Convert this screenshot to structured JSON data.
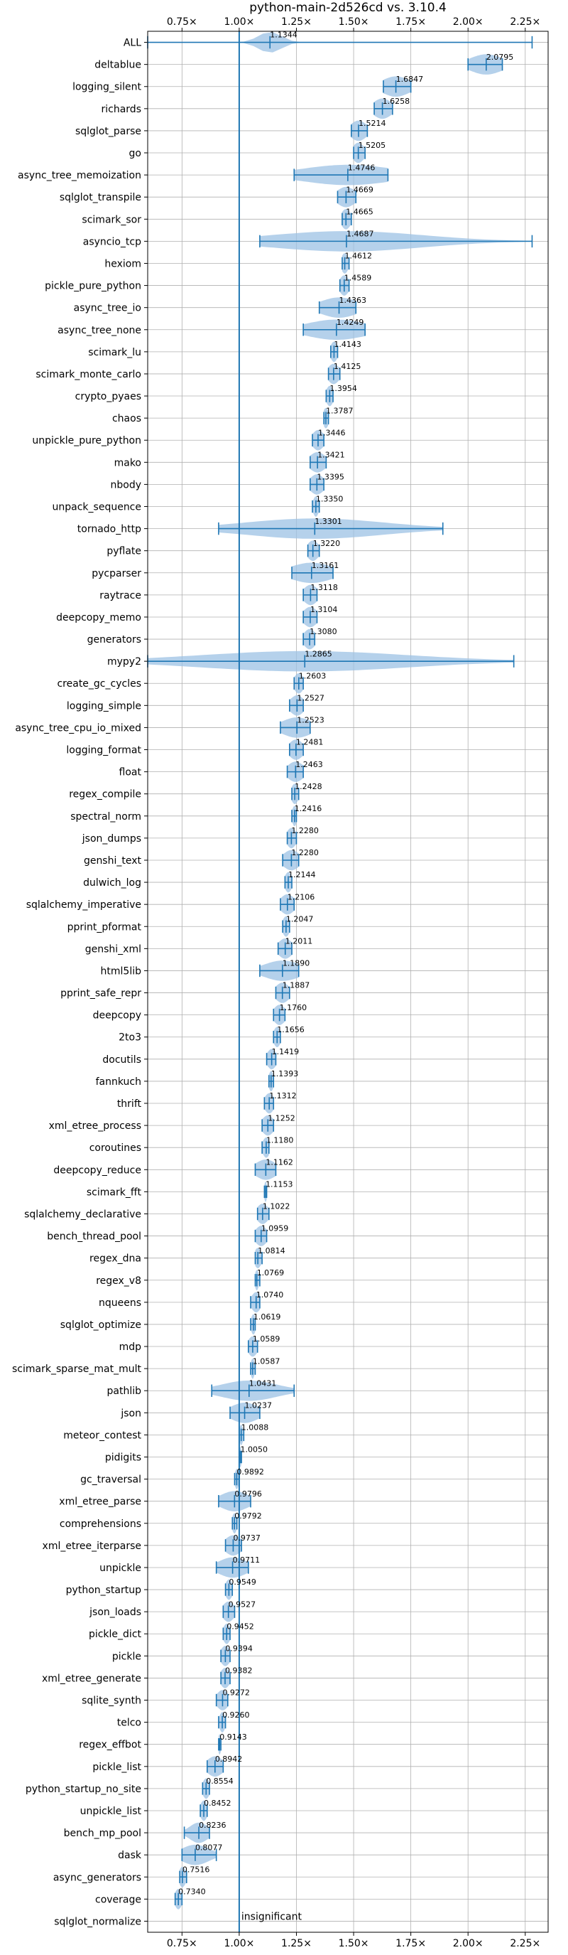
{
  "chart_data": {
    "type": "violin",
    "title": "python-main-2d526cd vs. 3.10.4",
    "xlabel": "",
    "ylabel": "",
    "xlim": [
      0.6,
      2.35
    ],
    "xticks": [
      0.75,
      1.0,
      1.25,
      1.5,
      1.75,
      2.0,
      2.25
    ],
    "xtick_labels": [
      "0.75×",
      "1.00×",
      "1.25×",
      "1.50×",
      "1.75×",
      "2.00×",
      "2.25×"
    ],
    "ticks_top_and_bottom": true,
    "grid": true,
    "reference_line": 1.0,
    "accent_color": "#1f77b4",
    "violin_color": "#9cc2e4",
    "annotation": "insignificant",
    "benchmarks": [
      {
        "name": "ALL",
        "value": 1.1344,
        "label": "1.1344",
        "min": 0.6,
        "max": 2.28,
        "spread": 0.05
      },
      {
        "name": "deltablue",
        "value": 2.0795,
        "label": "2.0795",
        "min": 2.0,
        "max": 2.15,
        "spread": 0.07
      },
      {
        "name": "logging_silent",
        "value": 1.6847,
        "label": "1.6847",
        "min": 1.63,
        "max": 1.75,
        "spread": 0.06
      },
      {
        "name": "richards",
        "value": 1.6258,
        "label": "1.6258",
        "min": 1.59,
        "max": 1.67,
        "spread": 0.04
      },
      {
        "name": "sqlglot_parse",
        "value": 1.5214,
        "label": "1.5214",
        "min": 1.49,
        "max": 1.56,
        "spread": 0.035
      },
      {
        "name": "go",
        "value": 1.5205,
        "label": "1.5205",
        "min": 1.5,
        "max": 1.55,
        "spread": 0.025
      },
      {
        "name": "async_tree_memoization",
        "value": 1.4746,
        "label": "1.4746",
        "min": 1.24,
        "max": 1.65,
        "spread": 0.2
      },
      {
        "name": "sqlglot_transpile",
        "value": 1.4669,
        "label": "1.4669",
        "min": 1.43,
        "max": 1.51,
        "spread": 0.04
      },
      {
        "name": "scimark_sor",
        "value": 1.4665,
        "label": "1.4665",
        "min": 1.45,
        "max": 1.49,
        "spread": 0.02
      },
      {
        "name": "asyncio_tcp",
        "value": 1.4687,
        "label": "1.4687",
        "min": 1.09,
        "max": 2.28,
        "spread": 0.33
      },
      {
        "name": "hexiom",
        "value": 1.4612,
        "label": "1.4612",
        "min": 1.45,
        "max": 1.48,
        "spread": 0.015
      },
      {
        "name": "pickle_pure_python",
        "value": 1.4589,
        "label": "1.4589",
        "min": 1.44,
        "max": 1.48,
        "spread": 0.02
      },
      {
        "name": "async_tree_io",
        "value": 1.4363,
        "label": "1.4363",
        "min": 1.35,
        "max": 1.51,
        "spread": 0.08
      },
      {
        "name": "async_tree_none",
        "value": 1.4249,
        "label": "1.4249",
        "min": 1.28,
        "max": 1.55,
        "spread": 0.13
      },
      {
        "name": "scimark_lu",
        "value": 1.4143,
        "label": "1.4143",
        "min": 1.4,
        "max": 1.43,
        "spread": 0.015
      },
      {
        "name": "scimark_monte_carlo",
        "value": 1.4125,
        "label": "1.4125",
        "min": 1.39,
        "max": 1.44,
        "spread": 0.025
      },
      {
        "name": "crypto_pyaes",
        "value": 1.3954,
        "label": "1.3954",
        "min": 1.38,
        "max": 1.41,
        "spread": 0.015
      },
      {
        "name": "chaos",
        "value": 1.3787,
        "label": "1.3787",
        "min": 1.37,
        "max": 1.39,
        "spread": 0.012
      },
      {
        "name": "unpickle_pure_python",
        "value": 1.3446,
        "label": "1.3446",
        "min": 1.32,
        "max": 1.37,
        "spread": 0.025
      },
      {
        "name": "mako",
        "value": 1.3421,
        "label": "1.3421",
        "min": 1.31,
        "max": 1.38,
        "spread": 0.035
      },
      {
        "name": "nbody",
        "value": 1.3395,
        "label": "1.3395",
        "min": 1.31,
        "max": 1.37,
        "spread": 0.03
      },
      {
        "name": "unpack_sequence",
        "value": 1.335,
        "label": "1.3350",
        "min": 1.32,
        "max": 1.35,
        "spread": 0.012
      },
      {
        "name": "tornado_http",
        "value": 1.3301,
        "label": "1.3301",
        "min": 0.91,
        "max": 1.89,
        "spread": 0.3
      },
      {
        "name": "pyflate",
        "value": 1.322,
        "label": "1.3220",
        "min": 1.3,
        "max": 1.35,
        "spread": 0.025
      },
      {
        "name": "pycparser",
        "value": 1.3161,
        "label": "1.3161",
        "min": 1.23,
        "max": 1.41,
        "spread": 0.09
      },
      {
        "name": "raytrace",
        "value": 1.3118,
        "label": "1.3118",
        "min": 1.28,
        "max": 1.34,
        "spread": 0.03
      },
      {
        "name": "deepcopy_memo",
        "value": 1.3104,
        "label": "1.3104",
        "min": 1.28,
        "max": 1.34,
        "spread": 0.03
      },
      {
        "name": "generators",
        "value": 1.308,
        "label": "1.3080",
        "min": 1.28,
        "max": 1.33,
        "spread": 0.025
      },
      {
        "name": "mypy2",
        "value": 1.2865,
        "label": "1.2865",
        "min": 0.6,
        "max": 2.2,
        "spread": 0.45
      },
      {
        "name": "create_gc_cycles",
        "value": 1.2603,
        "label": "1.2603",
        "min": 1.24,
        "max": 1.28,
        "spread": 0.02
      },
      {
        "name": "logging_simple",
        "value": 1.2527,
        "label": "1.2527",
        "min": 1.22,
        "max": 1.28,
        "spread": 0.03
      },
      {
        "name": "async_tree_cpu_io_mixed",
        "value": 1.2523,
        "label": "1.2523",
        "min": 1.18,
        "max": 1.31,
        "spread": 0.065
      },
      {
        "name": "logging_format",
        "value": 1.2481,
        "label": "1.2481",
        "min": 1.22,
        "max": 1.28,
        "spread": 0.03
      },
      {
        "name": "float",
        "value": 1.2463,
        "label": "1.2463",
        "min": 1.21,
        "max": 1.28,
        "spread": 0.035
      },
      {
        "name": "regex_compile",
        "value": 1.2428,
        "label": "1.2428",
        "min": 1.23,
        "max": 1.26,
        "spread": 0.015
      },
      {
        "name": "spectral_norm",
        "value": 1.2416,
        "label": "1.2416",
        "min": 1.23,
        "max": 1.25,
        "spread": 0.01
      },
      {
        "name": "json_dumps",
        "value": 1.228,
        "label": "1.2280",
        "min": 1.21,
        "max": 1.25,
        "spread": 0.02
      },
      {
        "name": "genshi_text",
        "value": 1.228,
        "label": "1.2280",
        "min": 1.19,
        "max": 1.26,
        "spread": 0.035
      },
      {
        "name": "dulwich_log",
        "value": 1.2144,
        "label": "1.2144",
        "min": 1.2,
        "max": 1.23,
        "spread": 0.015
      },
      {
        "name": "sqlalchemy_imperative",
        "value": 1.2106,
        "label": "1.2106",
        "min": 1.18,
        "max": 1.24,
        "spread": 0.03
      },
      {
        "name": "pprint_pformat",
        "value": 1.2047,
        "label": "1.2047",
        "min": 1.19,
        "max": 1.22,
        "spread": 0.015
      },
      {
        "name": "genshi_xml",
        "value": 1.2011,
        "label": "1.2011",
        "min": 1.17,
        "max": 1.23,
        "spread": 0.03
      },
      {
        "name": "html5lib",
        "value": 1.189,
        "label": "1.1890",
        "min": 1.09,
        "max": 1.26,
        "spread": 0.08
      },
      {
        "name": "pprint_safe_repr",
        "value": 1.1887,
        "label": "1.1887",
        "min": 1.16,
        "max": 1.22,
        "spread": 0.03
      },
      {
        "name": "deepcopy",
        "value": 1.176,
        "label": "1.1760",
        "min": 1.15,
        "max": 1.2,
        "spread": 0.025
      },
      {
        "name": "2to3",
        "value": 1.1656,
        "label": "1.1656",
        "min": 1.15,
        "max": 1.18,
        "spread": 0.015
      },
      {
        "name": "docutils",
        "value": 1.1419,
        "label": "1.1419",
        "min": 1.12,
        "max": 1.16,
        "spread": 0.02
      },
      {
        "name": "fannkuch",
        "value": 1.1393,
        "label": "1.1393",
        "min": 1.13,
        "max": 1.15,
        "spread": 0.01
      },
      {
        "name": "thrift",
        "value": 1.1312,
        "label": "1.1312",
        "min": 1.11,
        "max": 1.15,
        "spread": 0.02
      },
      {
        "name": "xml_etree_process",
        "value": 1.1252,
        "label": "1.1252",
        "min": 1.1,
        "max": 1.15,
        "spread": 0.025
      },
      {
        "name": "coroutines",
        "value": 1.118,
        "label": "1.1180",
        "min": 1.1,
        "max": 1.13,
        "spread": 0.015
      },
      {
        "name": "deepcopy_reduce",
        "value": 1.1162,
        "label": "1.1162",
        "min": 1.07,
        "max": 1.16,
        "spread": 0.045
      },
      {
        "name": "scimark_fft",
        "value": 1.1153,
        "label": "1.1153",
        "min": 1.11,
        "max": 1.12,
        "spread": 0.006
      },
      {
        "name": "sqlalchemy_declarative",
        "value": 1.1022,
        "label": "1.1022",
        "min": 1.08,
        "max": 1.13,
        "spread": 0.025
      },
      {
        "name": "bench_thread_pool",
        "value": 1.0959,
        "label": "1.0959",
        "min": 1.07,
        "max": 1.12,
        "spread": 0.025
      },
      {
        "name": "regex_dna",
        "value": 1.0814,
        "label": "1.0814",
        "min": 1.07,
        "max": 1.1,
        "spread": 0.015
      },
      {
        "name": "regex_v8",
        "value": 1.0769,
        "label": "1.0769",
        "min": 1.07,
        "max": 1.09,
        "spread": 0.008
      },
      {
        "name": "nqueens",
        "value": 1.074,
        "label": "1.0740",
        "min": 1.05,
        "max": 1.09,
        "spread": 0.02
      },
      {
        "name": "sqlglot_optimize",
        "value": 1.0619,
        "label": "1.0619",
        "min": 1.05,
        "max": 1.07,
        "spread": 0.01
      },
      {
        "name": "mdp",
        "value": 1.0589,
        "label": "1.0589",
        "min": 1.04,
        "max": 1.08,
        "spread": 0.02
      },
      {
        "name": "scimark_sparse_mat_mult",
        "value": 1.0587,
        "label": "1.0587",
        "min": 1.05,
        "max": 1.07,
        "spread": 0.008
      },
      {
        "name": "pathlib",
        "value": 1.0431,
        "label": "1.0431",
        "min": 0.88,
        "max": 1.24,
        "spread": 0.12
      },
      {
        "name": "json",
        "value": 1.0237,
        "label": "1.0237",
        "min": 0.96,
        "max": 1.09,
        "spread": 0.06
      },
      {
        "name": "meteor_contest",
        "value": 1.0088,
        "label": "1.0088",
        "min": 1.0,
        "max": 1.02,
        "spread": 0.008
      },
      {
        "name": "pidigits",
        "value": 1.005,
        "label": "1.0050",
        "min": 1.0,
        "max": 1.01,
        "spread": 0.005
      },
      {
        "name": "gc_traversal",
        "value": 0.9892,
        "label": "0.9892",
        "min": 0.98,
        "max": 1.0,
        "spread": 0.008
      },
      {
        "name": "xml_etree_parse",
        "value": 0.9796,
        "label": "0.9796",
        "min": 0.91,
        "max": 1.05,
        "spread": 0.06
      },
      {
        "name": "comprehensions",
        "value": 0.9792,
        "label": "0.9792",
        "min": 0.97,
        "max": 0.99,
        "spread": 0.01
      },
      {
        "name": "xml_etree_iterparse",
        "value": 0.9737,
        "label": "0.9737",
        "min": 0.94,
        "max": 1.01,
        "spread": 0.035
      },
      {
        "name": "unpickle",
        "value": 0.9711,
        "label": "0.9711",
        "min": 0.9,
        "max": 1.04,
        "spread": 0.06
      },
      {
        "name": "python_startup",
        "value": 0.9549,
        "label": "0.9549",
        "min": 0.94,
        "max": 0.97,
        "spread": 0.015
      },
      {
        "name": "json_loads",
        "value": 0.9527,
        "label": "0.9527",
        "min": 0.93,
        "max": 0.98,
        "spread": 0.025
      },
      {
        "name": "pickle_dict",
        "value": 0.9452,
        "label": "0.9452",
        "min": 0.93,
        "max": 0.96,
        "spread": 0.015
      },
      {
        "name": "pickle",
        "value": 0.9394,
        "label": "0.9394",
        "min": 0.92,
        "max": 0.96,
        "spread": 0.02
      },
      {
        "name": "xml_etree_generate",
        "value": 0.9382,
        "label": "0.9382",
        "min": 0.92,
        "max": 0.96,
        "spread": 0.02
      },
      {
        "name": "sqlite_synth",
        "value": 0.9272,
        "label": "0.9272",
        "min": 0.9,
        "max": 0.95,
        "spread": 0.025
      },
      {
        "name": "telco",
        "value": 0.926,
        "label": "0.9260",
        "min": 0.91,
        "max": 0.94,
        "spread": 0.012
      },
      {
        "name": "regex_effbot",
        "value": 0.9143,
        "label": "0.9143",
        "min": 0.91,
        "max": 0.92,
        "spread": 0.006
      },
      {
        "name": "pickle_list",
        "value": 0.8942,
        "label": "0.8942",
        "min": 0.86,
        "max": 0.93,
        "spread": 0.035
      },
      {
        "name": "python_startup_no_site",
        "value": 0.8554,
        "label": "0.8554",
        "min": 0.84,
        "max": 0.87,
        "spread": 0.015
      },
      {
        "name": "unpickle_list",
        "value": 0.8452,
        "label": "0.8452",
        "min": 0.83,
        "max": 0.86,
        "spread": 0.015
      },
      {
        "name": "bench_mp_pool",
        "value": 0.8236,
        "label": "0.8236",
        "min": 0.76,
        "max": 0.87,
        "spread": 0.04
      },
      {
        "name": "dask",
        "value": 0.8077,
        "label": "0.8077",
        "min": 0.75,
        "max": 0.9,
        "spread": 0.06
      },
      {
        "name": "async_generators",
        "value": 0.7516,
        "label": "0.7516",
        "min": 0.74,
        "max": 0.77,
        "spread": 0.015
      },
      {
        "name": "coverage",
        "value": 0.734,
        "label": "0.7340",
        "min": 0.72,
        "max": 0.75,
        "spread": 0.015
      },
      {
        "name": "sqlglot_normalize",
        "value": null,
        "label": "",
        "min": null,
        "max": null,
        "spread": 0,
        "status": "insignificant"
      }
    ]
  }
}
